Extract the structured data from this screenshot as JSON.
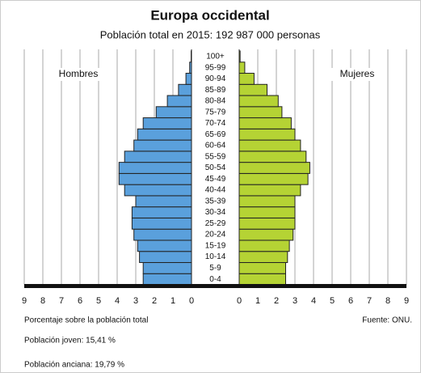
{
  "chart_data": {
    "type": "pyramid",
    "title": "Europa occidental",
    "subtitle": "Población total en 2015: 192 987 000 personas",
    "categories": [
      "0-4",
      "5-9",
      "10-14",
      "15-19",
      "20-24",
      "25-29",
      "30-34",
      "35-39",
      "40-44",
      "45-49",
      "50-54",
      "55-59",
      "60-64",
      "65-69",
      "70-74",
      "75-79",
      "80-84",
      "85-89",
      "90-94",
      "95-99",
      "100+"
    ],
    "series": [
      {
        "name": "Hombres",
        "color": "#5aa0dc",
        "side": "left",
        "values": [
          2.6,
          2.6,
          2.8,
          2.9,
          3.1,
          3.2,
          3.2,
          3.0,
          3.6,
          3.9,
          3.9,
          3.6,
          3.1,
          2.9,
          2.6,
          1.9,
          1.3,
          0.7,
          0.3,
          0.1,
          0.02
        ]
      },
      {
        "name": "Mujeres",
        "color": "#b5d334",
        "side": "right",
        "values": [
          2.5,
          2.5,
          2.6,
          2.7,
          2.9,
          3.0,
          3.0,
          3.0,
          3.3,
          3.7,
          3.8,
          3.6,
          3.3,
          3.0,
          2.8,
          2.3,
          2.1,
          1.5,
          0.8,
          0.3,
          0.05
        ]
      }
    ],
    "xlim": [
      0,
      9
    ],
    "xticks": [
      0,
      1,
      2,
      3,
      4,
      5,
      6,
      7,
      8,
      9
    ],
    "grid": true,
    "xlabel": "Porcentaje sobre la población total",
    "source": "Fuente: ONU.",
    "notes": [
      "Población joven: 15,41 %",
      "Población anciana: 19,79 %"
    ]
  }
}
